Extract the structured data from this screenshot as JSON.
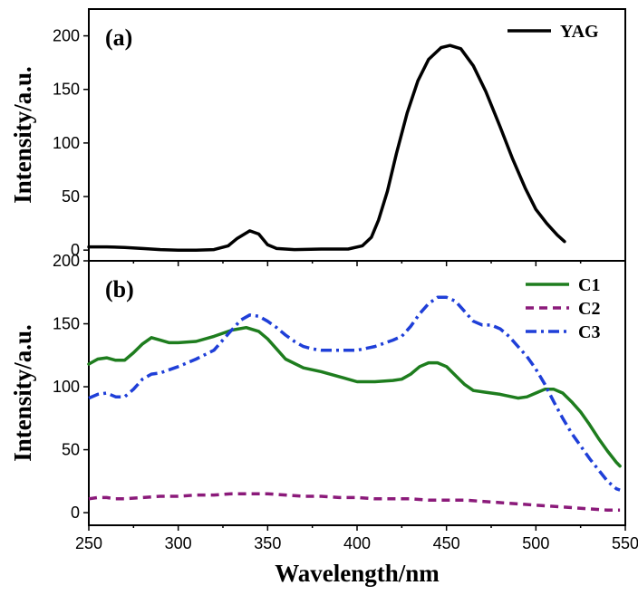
{
  "chart_data": [
    {
      "type": "line",
      "panel_label": "(a)",
      "ylabel": "Intensity/a.u.",
      "xlabel": "",
      "xlim": [
        250,
        550
      ],
      "ylim": [
        -10,
        225
      ],
      "yticks": [
        0,
        50,
        100,
        150,
        200
      ],
      "legend_position": "top-right",
      "series": [
        {
          "name": "YAG",
          "color": "#000000",
          "dash": "solid",
          "points": [
            [
              250,
              3
            ],
            [
              260,
              3
            ],
            [
              270,
              2.5
            ],
            [
              280,
              1.5
            ],
            [
              290,
              0.5
            ],
            [
              300,
              0
            ],
            [
              310,
              0
            ],
            [
              320,
              0.5
            ],
            [
              328,
              4
            ],
            [
              333,
              11
            ],
            [
              340,
              18
            ],
            [
              345,
              15
            ],
            [
              350,
              5
            ],
            [
              355,
              1.5
            ],
            [
              365,
              0.5
            ],
            [
              380,
              1
            ],
            [
              395,
              1
            ],
            [
              403,
              4
            ],
            [
              408,
              12
            ],
            [
              412,
              28
            ],
            [
              417,
              55
            ],
            [
              422,
              90
            ],
            [
              428,
              128
            ],
            [
              434,
              158
            ],
            [
              440,
              178
            ],
            [
              447,
              189
            ],
            [
              452,
              191
            ],
            [
              458,
              188
            ],
            [
              465,
              172
            ],
            [
              472,
              148
            ],
            [
              480,
              115
            ],
            [
              487,
              85
            ],
            [
              494,
              58
            ],
            [
              500,
              38
            ],
            [
              506,
              25
            ],
            [
              512,
              14
            ],
            [
              516,
              8
            ]
          ]
        }
      ]
    },
    {
      "type": "line",
      "panel_label": "(b)",
      "ylabel": "Intensity/a.u.",
      "xlabel": "Wavelength/nm",
      "xlim": [
        250,
        550
      ],
      "ylim": [
        -10,
        200
      ],
      "yticks": [
        0,
        50,
        100,
        150,
        200
      ],
      "xticks": [
        250,
        300,
        350,
        400,
        450,
        500,
        550
      ],
      "legend_position": "top-right",
      "series": [
        {
          "name": "C1",
          "color": "#1e7d1e",
          "dash": "solid",
          "points": [
            [
              250,
              118
            ],
            [
              255,
              122
            ],
            [
              260,
              123
            ],
            [
              265,
              121
            ],
            [
              270,
              121
            ],
            [
              275,
              127
            ],
            [
              280,
              134
            ],
            [
              285,
              139
            ],
            [
              290,
              137
            ],
            [
              295,
              135
            ],
            [
              300,
              135
            ],
            [
              310,
              136
            ],
            [
              320,
              140
            ],
            [
              330,
              145
            ],
            [
              338,
              147
            ],
            [
              345,
              144
            ],
            [
              350,
              138
            ],
            [
              355,
              130
            ],
            [
              360,
              122
            ],
            [
              370,
              115
            ],
            [
              380,
              112
            ],
            [
              390,
              108
            ],
            [
              400,
              104
            ],
            [
              410,
              104
            ],
            [
              420,
              105
            ],
            [
              425,
              106
            ],
            [
              430,
              110
            ],
            [
              435,
              116
            ],
            [
              440,
              119
            ],
            [
              445,
              119
            ],
            [
              450,
              116
            ],
            [
              455,
              109
            ],
            [
              460,
              102
            ],
            [
              465,
              97
            ],
            [
              470,
              96
            ],
            [
              480,
              94
            ],
            [
              490,
              91
            ],
            [
              495,
              92
            ],
            [
              500,
              95
            ],
            [
              505,
              98
            ],
            [
              510,
              98
            ],
            [
              515,
              95
            ],
            [
              520,
              88
            ],
            [
              525,
              80
            ],
            [
              530,
              70
            ],
            [
              535,
              59
            ],
            [
              540,
              49
            ],
            [
              545,
              40
            ],
            [
              547,
              37
            ]
          ]
        },
        {
          "name": "C2",
          "color": "#8b1a7a",
          "dash": "dashed",
          "points": [
            [
              250,
              11
            ],
            [
              255,
              12
            ],
            [
              260,
              12
            ],
            [
              265,
              11
            ],
            [
              270,
              11
            ],
            [
              280,
              12
            ],
            [
              290,
              13
            ],
            [
              300,
              13
            ],
            [
              310,
              14
            ],
            [
              320,
              14
            ],
            [
              330,
              15
            ],
            [
              340,
              15
            ],
            [
              350,
              15
            ],
            [
              360,
              14
            ],
            [
              370,
              13
            ],
            [
              380,
              13
            ],
            [
              390,
              12
            ],
            [
              400,
              12
            ],
            [
              410,
              11
            ],
            [
              420,
              11
            ],
            [
              430,
              11
            ],
            [
              440,
              10
            ],
            [
              450,
              10
            ],
            [
              460,
              10
            ],
            [
              470,
              9
            ],
            [
              480,
              8
            ],
            [
              490,
              7
            ],
            [
              500,
              6
            ],
            [
              510,
              5
            ],
            [
              520,
              4
            ],
            [
              530,
              3
            ],
            [
              540,
              2
            ],
            [
              547,
              2
            ]
          ]
        },
        {
          "name": "C3",
          "color": "#1f3fd8",
          "dash": "dashdot",
          "points": [
            [
              250,
              91
            ],
            [
              255,
              94
            ],
            [
              260,
              95
            ],
            [
              265,
              92
            ],
            [
              270,
              92
            ],
            [
              275,
              98
            ],
            [
              280,
              106
            ],
            [
              285,
              110
            ],
            [
              290,
              111
            ],
            [
              300,
              116
            ],
            [
              310,
              122
            ],
            [
              320,
              129
            ],
            [
              328,
              142
            ],
            [
              335,
              153
            ],
            [
              340,
              157
            ],
            [
              345,
              156
            ],
            [
              350,
              152
            ],
            [
              355,
              147
            ],
            [
              360,
              141
            ],
            [
              365,
              136
            ],
            [
              370,
              132
            ],
            [
              375,
              130
            ],
            [
              380,
              129
            ],
            [
              390,
              129
            ],
            [
              400,
              129
            ],
            [
              410,
              132
            ],
            [
              420,
              137
            ],
            [
              425,
              140
            ],
            [
              430,
              148
            ],
            [
              435,
              158
            ],
            [
              440,
              166
            ],
            [
              445,
              171
            ],
            [
              450,
              171
            ],
            [
              455,
              168
            ],
            [
              460,
              160
            ],
            [
              465,
              152
            ],
            [
              470,
              149
            ],
            [
              475,
              149
            ],
            [
              480,
              146
            ],
            [
              485,
              140
            ],
            [
              490,
              132
            ],
            [
              495,
              124
            ],
            [
              500,
              114
            ],
            [
              505,
              102
            ],
            [
              510,
              88
            ],
            [
              515,
              75
            ],
            [
              520,
              63
            ],
            [
              525,
              53
            ],
            [
              530,
              43
            ],
            [
              535,
              34
            ],
            [
              540,
              25
            ],
            [
              545,
              19
            ],
            [
              547,
              18
            ]
          ]
        }
      ]
    }
  ]
}
